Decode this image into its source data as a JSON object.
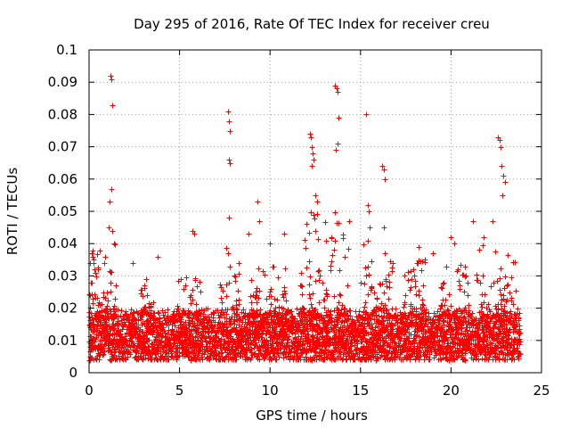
{
  "chart_data": {
    "type": "scatter",
    "title": "Day 295 of 2016, Rate Of TEC Index for receiver creu",
    "xlabel": "GPS time / hours",
    "ylabel": "ROTI / TECUs",
    "xlim": [
      0,
      25
    ],
    "ylim": [
      0,
      0.1
    ],
    "x_ticks": [
      0,
      5,
      10,
      15,
      20,
      25
    ],
    "x_tick_labels": [
      "0",
      "5",
      "10",
      "15",
      "20",
      "25"
    ],
    "y_ticks": [
      0,
      0.01,
      0.02,
      0.03,
      0.04,
      0.05,
      0.06,
      0.07,
      0.08,
      0.09,
      0.1
    ],
    "y_tick_labels": [
      "0",
      "0.01",
      "0.02",
      "0.03",
      "0.04",
      "0.05",
      "0.06",
      "0.07",
      "0.08",
      "0.09",
      "0.1"
    ],
    "grid": true,
    "marker": "+",
    "series": [
      {
        "name": "ROTI",
        "color": "#ff0000",
        "x": [
          0.05,
          0.15,
          0.2,
          0.25,
          0.3,
          0.1,
          0.22,
          0.35,
          1.2,
          1.25,
          1.3,
          1.22,
          1.15,
          1.1,
          1.28,
          0.9,
          7.7,
          7.75,
          7.8,
          7.72,
          7.78,
          7.74,
          9.3,
          9.4,
          12.2,
          12.25,
          12.3,
          12.35,
          12.4,
          12.28,
          12.5,
          12.6,
          13.6,
          13.7,
          13.75,
          13.8,
          13.72,
          13.65,
          15.3,
          15.4,
          15.45,
          15.5,
          15.42,
          16.2,
          16.3,
          16.35,
          16.28,
          18.2,
          19.0,
          20.0,
          20.2,
          21.2,
          21.8,
          22.3,
          22.6,
          22.7,
          22.75,
          22.8,
          22.9,
          23.0,
          22.85,
          3.8,
          5.7,
          5.8,
          8.8,
          10.0,
          10.8,
          2.4
        ],
        "y": [
          0.024,
          0.037,
          0.036,
          0.034,
          0.032,
          0.028,
          0.023,
          0.031,
          0.092,
          0.091,
          0.083,
          0.057,
          0.053,
          0.045,
          0.044,
          0.036,
          0.081,
          0.078,
          0.075,
          0.066,
          0.065,
          0.048,
          0.053,
          0.047,
          0.074,
          0.073,
          0.07,
          0.068,
          0.066,
          0.064,
          0.055,
          0.053,
          0.089,
          0.088,
          0.087,
          0.079,
          0.071,
          0.069,
          0.08,
          0.052,
          0.05,
          0.045,
          0.041,
          0.064,
          0.063,
          0.06,
          0.045,
          0.039,
          0.037,
          0.042,
          0.04,
          0.047,
          0.042,
          0.047,
          0.073,
          0.072,
          0.07,
          0.064,
          0.061,
          0.059,
          0.055,
          0.036,
          0.044,
          0.043,
          0.043,
          0.04,
          0.043,
          0.034
        ]
      }
    ],
    "noise_band": {
      "description": "dense cloud of ROTI samples across the whole day",
      "x_range": [
        0,
        23.8
      ],
      "y_base_range": [
        0.004,
        0.02
      ],
      "active_windows": [
        {
          "x": [
            0,
            0.6
          ],
          "y_max": 0.038
        },
        {
          "x": [
            0.7,
            1.5
          ],
          "y_max": 0.045
        },
        {
          "x": [
            2.8,
            3.6
          ],
          "y_max": 0.03
        },
        {
          "x": [
            4.8,
            6.2
          ],
          "y_max": 0.03
        },
        {
          "x": [
            7.2,
            8.3
          ],
          "y_max": 0.04
        },
        {
          "x": [
            8.9,
            11.0
          ],
          "y_max": 0.033
        },
        {
          "x": [
            11.6,
            14.4
          ],
          "y_max": 0.05
        },
        {
          "x": [
            15.0,
            16.8
          ],
          "y_max": 0.04
        },
        {
          "x": [
            17.2,
            18.6
          ],
          "y_max": 0.036
        },
        {
          "x": [
            19.3,
            21.0
          ],
          "y_max": 0.035
        },
        {
          "x": [
            21.4,
            23.6
          ],
          "y_max": 0.04
        }
      ]
    }
  }
}
